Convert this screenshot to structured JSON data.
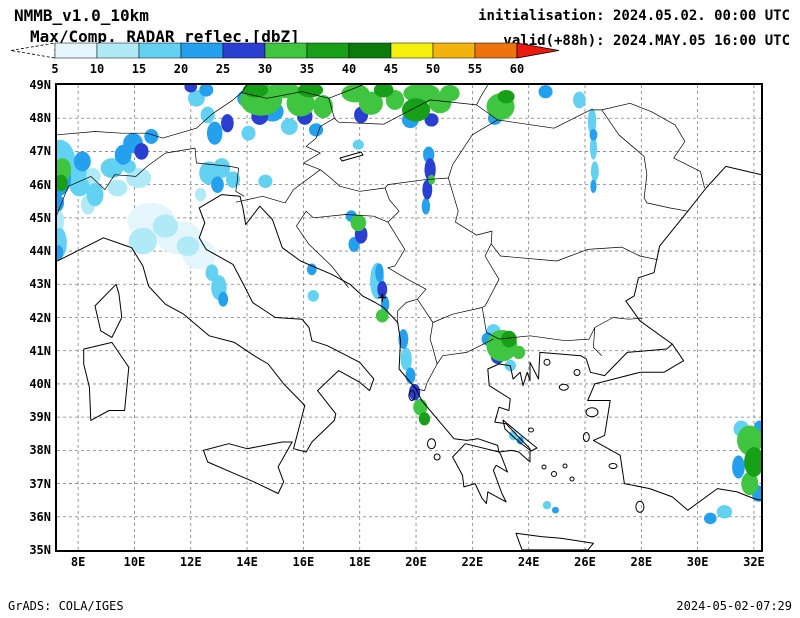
{
  "header": {
    "model_name": "NMMB_v1.0_10km",
    "product_label": "Max/Comp. RADAR reflec.[dbZ]",
    "init_label": "initialisation: 2024.05.02. 00:00 UTC",
    "valid_label": "valid(+88h): 2024.MAY.05 16:00 UTC"
  },
  "footer": {
    "generator": "GrADS: COLA/IGES",
    "timestamp": "2024-05-02-07:29"
  },
  "chart_data": {
    "type": "heatmap",
    "title": "Max/Comp. RADAR reflec.[dbZ]",
    "units": "dbZ",
    "model": "NMMB_v1.0_10km",
    "initialisation": "2024.05.02. 00:00 UTC",
    "valid": "2024.MAY.05 16:00 UTC",
    "forecast_hour": "+88h",
    "colorbar": {
      "tick_labels": [
        5,
        10,
        15,
        20,
        25,
        30,
        35,
        40,
        45,
        50,
        55,
        60
      ],
      "colors": [
        "#ffffff",
        "#e4f6fb",
        "#b0eaf7",
        "#62d1f2",
        "#25a0ee",
        "#2a3ed2",
        "#3fc53f",
        "#17a017",
        "#0b7c0b",
        "#f4ef0c",
        "#f2b40c",
        "#ee720d",
        "#ec1a0e"
      ]
    },
    "map_extent": {
      "lon_min": 7.25,
      "lon_max": 32.25,
      "lat_min": 35,
      "lat_max": 49
    },
    "grid": {
      "dashed": true,
      "color": "#808080"
    },
    "lat_ticks": [
      {
        "value": 49,
        "label": "49N"
      },
      {
        "value": 48,
        "label": "48N"
      },
      {
        "value": 47,
        "label": "47N"
      },
      {
        "value": 46,
        "label": "46N"
      },
      {
        "value": 45,
        "label": "45N"
      },
      {
        "value": 44,
        "label": "44N"
      },
      {
        "value": 43,
        "label": "43N"
      },
      {
        "value": 42,
        "label": "42N"
      },
      {
        "value": 41,
        "label": "41N"
      },
      {
        "value": 40,
        "label": "40N"
      },
      {
        "value": 39,
        "label": "39N"
      },
      {
        "value": 38,
        "label": "38N"
      },
      {
        "value": 37,
        "label": "37N"
      },
      {
        "value": 36,
        "label": "36N"
      },
      {
        "value": 35,
        "label": "35N"
      }
    ],
    "lon_ticks": [
      {
        "value": 8,
        "label": "8E"
      },
      {
        "value": 10,
        "label": "10E"
      },
      {
        "value": 12,
        "label": "12E"
      },
      {
        "value": 14,
        "label": "14E"
      },
      {
        "value": 16,
        "label": "16E"
      },
      {
        "value": 18,
        "label": "18E"
      },
      {
        "value": 20,
        "label": "20E"
      },
      {
        "value": 22,
        "label": "22E"
      },
      {
        "value": 24,
        "label": "24E"
      },
      {
        "value": 26,
        "label": "26E"
      },
      {
        "value": 28,
        "label": "28E"
      },
      {
        "value": 30,
        "label": "30E"
      },
      {
        "value": 32,
        "label": "32E"
      }
    ],
    "station_marker": {
      "lon": 18.8,
      "lat": 42.6,
      "symbol": "+"
    },
    "echo_fields": [
      "lon",
      "lat",
      "width_deg",
      "height_deg",
      "dbz_min"
    ],
    "echoes": [
      [
        7.35,
        46.7,
        1.1,
        1.3,
        15
      ],
      [
        7.3,
        46.2,
        0.9,
        1.1,
        20
      ],
      [
        7.45,
        46.45,
        0.6,
        0.7,
        30
      ],
      [
        7.4,
        46.05,
        0.45,
        0.5,
        35
      ],
      [
        7.9,
        46.35,
        0.8,
        0.8,
        15
      ],
      [
        8.15,
        46.7,
        0.6,
        0.6,
        20
      ],
      [
        8.05,
        45.95,
        0.7,
        0.6,
        15
      ],
      [
        8.5,
        46.25,
        0.6,
        0.5,
        10
      ],
      [
        8.6,
        45.7,
        0.6,
        0.7,
        15
      ],
      [
        8.35,
        45.4,
        0.5,
        0.6,
        10
      ],
      [
        7.3,
        45.45,
        0.4,
        0.5,
        20
      ],
      [
        7.3,
        44.9,
        0.4,
        0.7,
        10
      ],
      [
        7.35,
        44.25,
        0.5,
        0.9,
        15
      ],
      [
        7.3,
        43.95,
        0.35,
        0.45,
        20
      ],
      [
        9.2,
        46.5,
        0.8,
        0.6,
        15
      ],
      [
        9.6,
        46.9,
        0.6,
        0.6,
        20
      ],
      [
        9.95,
        47.25,
        0.7,
        0.6,
        20
      ],
      [
        10.25,
        47.0,
        0.5,
        0.5,
        25
      ],
      [
        10.6,
        47.45,
        0.5,
        0.45,
        20
      ],
      [
        9.8,
        46.55,
        0.5,
        0.4,
        15
      ],
      [
        10.15,
        46.2,
        0.9,
        0.6,
        10
      ],
      [
        9.4,
        45.9,
        0.7,
        0.5,
        10
      ],
      [
        10.6,
        44.9,
        1.7,
        1.1,
        5
      ],
      [
        11.6,
        44.4,
        1.6,
        1.0,
        5
      ],
      [
        12.3,
        43.9,
        1.2,
        0.9,
        5
      ],
      [
        10.3,
        44.3,
        1.0,
        0.8,
        10
      ],
      [
        11.1,
        44.75,
        0.9,
        0.7,
        10
      ],
      [
        11.9,
        44.15,
        0.8,
        0.6,
        10
      ],
      [
        12.65,
        46.35,
        0.7,
        0.7,
        15
      ],
      [
        13.1,
        46.5,
        0.6,
        0.6,
        15
      ],
      [
        12.95,
        46.0,
        0.45,
        0.5,
        20
      ],
      [
        13.5,
        46.15,
        0.5,
        0.5,
        15
      ],
      [
        14.65,
        46.1,
        0.5,
        0.4,
        15
      ],
      [
        12.35,
        45.7,
        0.4,
        0.4,
        10
      ],
      [
        12.2,
        48.6,
        0.6,
        0.5,
        15
      ],
      [
        12.55,
        48.85,
        0.5,
        0.4,
        20
      ],
      [
        12.0,
        48.95,
        0.45,
        0.35,
        25
      ],
      [
        12.85,
        47.55,
        0.55,
        0.7,
        20
      ],
      [
        12.6,
        48.1,
        0.5,
        0.5,
        15
      ],
      [
        13.3,
        47.85,
        0.45,
        0.55,
        25
      ],
      [
        14.5,
        48.55,
        1.5,
        0.95,
        30
      ],
      [
        14.3,
        48.85,
        0.9,
        0.45,
        35
      ],
      [
        15.3,
        48.85,
        1.1,
        0.5,
        30
      ],
      [
        14.9,
        48.2,
        0.8,
        0.6,
        20
      ],
      [
        14.45,
        48.05,
        0.6,
        0.5,
        25
      ],
      [
        13.95,
        48.6,
        0.6,
        0.5,
        20
      ],
      [
        15.9,
        48.45,
        1.0,
        0.8,
        30
      ],
      [
        16.25,
        48.85,
        0.9,
        0.45,
        35
      ],
      [
        16.05,
        48.05,
        0.55,
        0.5,
        25
      ],
      [
        16.7,
        48.35,
        0.7,
        0.7,
        30
      ],
      [
        15.5,
        47.75,
        0.6,
        0.5,
        15
      ],
      [
        14.05,
        47.55,
        0.5,
        0.45,
        15
      ],
      [
        16.45,
        47.65,
        0.5,
        0.4,
        20
      ],
      [
        15.05,
        48.6,
        0.35,
        0.3,
        25
      ],
      [
        17.85,
        48.75,
        1.0,
        0.55,
        30
      ],
      [
        18.4,
        48.45,
        0.85,
        0.7,
        30
      ],
      [
        18.05,
        48.1,
        0.5,
        0.5,
        25
      ],
      [
        18.85,
        48.85,
        0.7,
        0.45,
        35
      ],
      [
        19.25,
        48.55,
        0.65,
        0.6,
        30
      ],
      [
        20.2,
        48.75,
        1.3,
        0.6,
        30
      ],
      [
        20.0,
        48.25,
        1.0,
        0.7,
        35
      ],
      [
        20.85,
        48.45,
        0.8,
        0.6,
        30
      ],
      [
        19.8,
        47.95,
        0.6,
        0.5,
        20
      ],
      [
        20.55,
        47.95,
        0.5,
        0.4,
        25
      ],
      [
        21.2,
        48.75,
        0.7,
        0.5,
        30
      ],
      [
        19.9,
        48.5,
        0.3,
        0.3,
        25
      ],
      [
        23.0,
        48.35,
        1.0,
        0.8,
        30
      ],
      [
        23.2,
        48.65,
        0.6,
        0.4,
        35
      ],
      [
        22.8,
        48.0,
        0.5,
        0.4,
        20
      ],
      [
        23.0,
        48.5,
        0.3,
        0.3,
        25
      ],
      [
        24.6,
        48.8,
        0.5,
        0.4,
        20
      ],
      [
        25.8,
        48.55,
        0.45,
        0.5,
        15
      ],
      [
        17.95,
        47.2,
        0.4,
        0.3,
        15
      ],
      [
        20.45,
        46.9,
        0.4,
        0.5,
        20
      ],
      [
        20.5,
        46.45,
        0.4,
        0.7,
        25
      ],
      [
        20.4,
        45.85,
        0.35,
        0.6,
        25
      ],
      [
        20.35,
        45.35,
        0.3,
        0.5,
        20
      ],
      [
        20.55,
        46.15,
        0.25,
        0.3,
        30
      ],
      [
        17.95,
        44.85,
        0.55,
        0.5,
        30
      ],
      [
        18.05,
        44.5,
        0.45,
        0.55,
        25
      ],
      [
        17.8,
        44.2,
        0.4,
        0.45,
        20
      ],
      [
        17.7,
        45.05,
        0.4,
        0.35,
        20
      ],
      [
        18.62,
        43.1,
        0.5,
        1.1,
        15
      ],
      [
        18.7,
        43.35,
        0.3,
        0.55,
        20
      ],
      [
        18.8,
        42.85,
        0.35,
        0.5,
        25
      ],
      [
        18.9,
        42.4,
        0.3,
        0.5,
        20
      ],
      [
        18.8,
        42.05,
        0.45,
        0.4,
        30
      ],
      [
        19.55,
        41.35,
        0.35,
        0.6,
        20
      ],
      [
        19.65,
        40.75,
        0.4,
        0.7,
        15
      ],
      [
        19.8,
        40.25,
        0.35,
        0.5,
        20
      ],
      [
        19.95,
        39.75,
        0.4,
        0.5,
        25
      ],
      [
        20.15,
        39.3,
        0.5,
        0.5,
        30
      ],
      [
        20.3,
        38.95,
        0.4,
        0.4,
        35
      ],
      [
        23.05,
        41.15,
        1.1,
        0.95,
        30
      ],
      [
        23.3,
        41.35,
        0.55,
        0.5,
        35
      ],
      [
        22.9,
        40.85,
        0.5,
        0.5,
        25
      ],
      [
        23.15,
        40.95,
        0.3,
        0.3,
        20
      ],
      [
        22.55,
        41.35,
        0.45,
        0.4,
        20
      ],
      [
        23.65,
        40.95,
        0.45,
        0.4,
        30
      ],
      [
        23.35,
        40.55,
        0.4,
        0.35,
        15
      ],
      [
        22.75,
        41.6,
        0.5,
        0.4,
        15
      ],
      [
        23.2,
        41.15,
        0.35,
        0.4,
        25
      ],
      [
        26.25,
        47.9,
        0.3,
        0.8,
        15
      ],
      [
        26.3,
        47.1,
        0.25,
        0.7,
        15
      ],
      [
        26.35,
        46.4,
        0.28,
        0.6,
        15
      ],
      [
        26.3,
        47.5,
        0.28,
        0.35,
        20
      ],
      [
        26.3,
        45.95,
        0.22,
        0.4,
        20
      ],
      [
        13.0,
        42.9,
        0.55,
        0.75,
        15
      ],
      [
        13.15,
        42.55,
        0.35,
        0.45,
        20
      ],
      [
        12.75,
        43.35,
        0.45,
        0.5,
        15
      ],
      [
        16.3,
        43.45,
        0.35,
        0.35,
        20
      ],
      [
        16.35,
        42.65,
        0.4,
        0.35,
        15
      ],
      [
        23.45,
        38.45,
        0.3,
        0.3,
        15
      ],
      [
        23.7,
        38.3,
        0.25,
        0.25,
        20
      ],
      [
        24.65,
        36.35,
        0.3,
        0.25,
        15
      ],
      [
        24.95,
        36.2,
        0.25,
        0.2,
        20
      ],
      [
        31.85,
        38.3,
        0.9,
        0.9,
        30
      ],
      [
        32.0,
        37.65,
        0.7,
        0.9,
        35
      ],
      [
        31.85,
        37.0,
        0.6,
        0.7,
        30
      ],
      [
        31.55,
        38.65,
        0.55,
        0.5,
        15
      ],
      [
        31.45,
        37.5,
        0.45,
        0.7,
        20
      ],
      [
        32.15,
        36.7,
        0.45,
        0.5,
        20
      ],
      [
        30.95,
        36.15,
        0.55,
        0.4,
        15
      ],
      [
        30.45,
        35.95,
        0.45,
        0.35,
        20
      ],
      [
        32.2,
        38.7,
        0.4,
        0.4,
        20
      ]
    ]
  }
}
